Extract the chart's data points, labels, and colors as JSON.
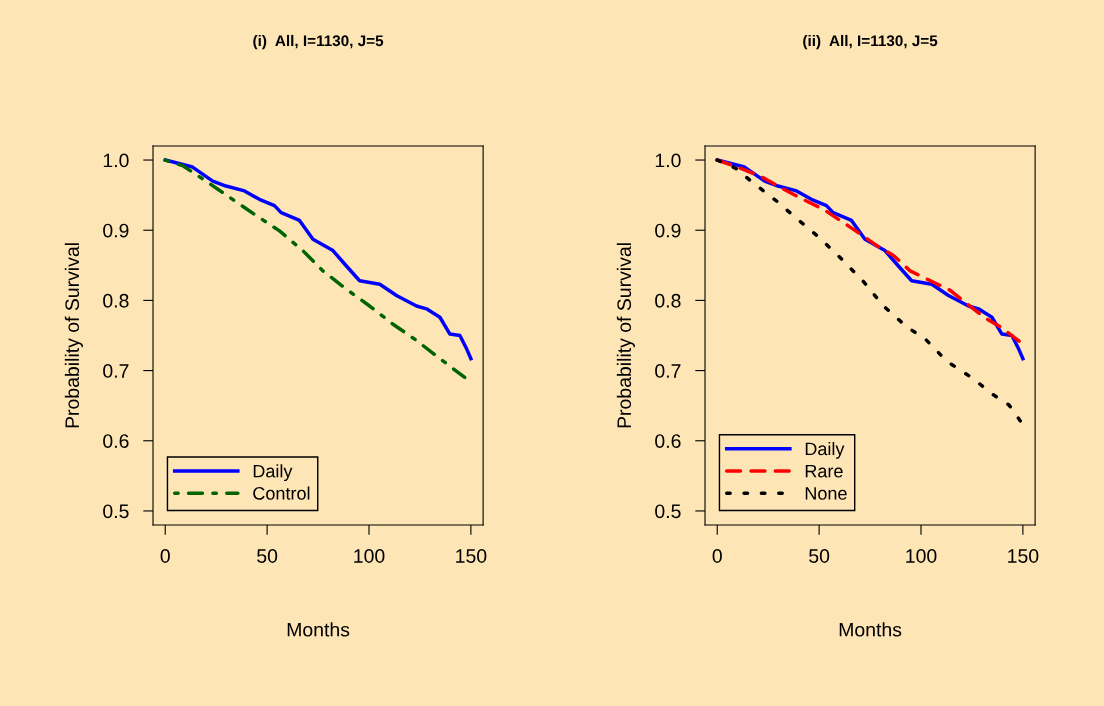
{
  "chart_data": [
    {
      "type": "line",
      "title": "(i)  All, I=1130, J=5",
      "xlabel": "Months",
      "ylabel": "Probability of Survival",
      "xlim": [
        -6,
        156
      ],
      "ylim": [
        0.48,
        1.02
      ],
      "xticks": [
        0,
        50,
        100,
        150
      ],
      "yticks": [
        {
          "value": 0.5,
          "label": "0.5"
        },
        {
          "value": 0.6,
          "label": "0.6"
        },
        {
          "value": 0.7,
          "label": "0.7"
        },
        {
          "value": 0.8,
          "label": "0.8"
        },
        {
          "value": 0.9,
          "label": "0.9"
        },
        {
          "value": 1.0,
          "label": "1.0"
        }
      ],
      "grid": false,
      "legend": "bottom left",
      "series": [
        {
          "name": "Daily",
          "color": "#0000ff",
          "line_style": "solid",
          "x": [
            0,
            13.4,
            23.3,
            29.8,
            38.9,
            46.2,
            53.6,
            56.9,
            65.9,
            72.5,
            82.3,
            88.9,
            95.4,
            105.3,
            113.5,
            123.3,
            128.2,
            134.8,
            139.7,
            144.6,
            147.9,
            150
          ],
          "values": [
            1.0,
            0.99,
            0.97,
            0.963,
            0.956,
            0.944,
            0.935,
            0.925,
            0.914,
            0.887,
            0.871,
            0.849,
            0.828,
            0.823,
            0.807,
            0.792,
            0.788,
            0.776,
            0.752,
            0.75,
            0.731,
            0.717
          ]
        },
        {
          "name": "Control",
          "color": "#006400",
          "line_style": "dashdot",
          "x": [
            0,
            8.5,
            20.0,
            31.5,
            44.6,
            56.1,
            67.5,
            77.4,
            88.9,
            100.3,
            111.8,
            123.3,
            134.8,
            147.1
          ],
          "values": [
            1.0,
            0.992,
            0.97,
            0.947,
            0.921,
            0.899,
            0.871,
            0.842,
            0.816,
            0.792,
            0.766,
            0.743,
            0.717,
            0.69
          ]
        }
      ]
    },
    {
      "type": "line",
      "title": "(ii)  All, I=1130, J=5",
      "xlabel": "Months",
      "ylabel": "Probability of Survival",
      "xlim": [
        -6,
        156
      ],
      "ylim": [
        0.48,
        1.02
      ],
      "xticks": [
        0,
        50,
        100,
        150
      ],
      "yticks": [
        {
          "value": 0.5,
          "label": "0.5"
        },
        {
          "value": 0.6,
          "label": "0.6"
        },
        {
          "value": 0.7,
          "label": "0.7"
        },
        {
          "value": 0.8,
          "label": "0.8"
        },
        {
          "value": 0.9,
          "label": "0.9"
        },
        {
          "value": 1.0,
          "label": "1.0"
        }
      ],
      "grid": false,
      "legend": "bottom left",
      "series": [
        {
          "name": "Daily",
          "color": "#0000ff",
          "line_style": "solid",
          "x": [
            0,
            13.4,
            23.3,
            29.8,
            38.9,
            46.2,
            53.6,
            56.9,
            65.9,
            72.5,
            82.3,
            88.9,
            95.4,
            105.3,
            113.5,
            123.3,
            128.2,
            134.8,
            139.7,
            144.6,
            147.9,
            150
          ],
          "values": [
            1.0,
            0.99,
            0.97,
            0.963,
            0.956,
            0.944,
            0.935,
            0.925,
            0.914,
            0.887,
            0.871,
            0.849,
            0.828,
            0.823,
            0.807,
            0.792,
            0.788,
            0.776,
            0.752,
            0.75,
            0.731,
            0.717
          ]
        },
        {
          "name": "Rare",
          "color": "#ff0000",
          "line_style": "dashed",
          "x": [
            0,
            12.5,
            22.4,
            32.2,
            42.1,
            52.0,
            61.8,
            70.0,
            78.3,
            86.5,
            94.7,
            104.6,
            114.5,
            122.7,
            130.9,
            139.1,
            149.0
          ],
          "values": [
            1.0,
            0.987,
            0.975,
            0.959,
            0.944,
            0.93,
            0.911,
            0.895,
            0.878,
            0.864,
            0.842,
            0.828,
            0.814,
            0.795,
            0.776,
            0.762,
            0.74
          ]
        },
        {
          "name": "None",
          "color": "#000000",
          "line_style": "dotted",
          "x": [
            0,
            9.2,
            17.4,
            29.8,
            38.0,
            49.5,
            61.0,
            71.7,
            81.6,
            93.1,
            102.1,
            112.8,
            125.9,
            134.2,
            143.2,
            149.3
          ],
          "values": [
            1.0,
            0.988,
            0.968,
            0.94,
            0.919,
            0.891,
            0.859,
            0.827,
            0.792,
            0.762,
            0.745,
            0.713,
            0.688,
            0.668,
            0.651,
            0.626
          ]
        }
      ]
    }
  ]
}
